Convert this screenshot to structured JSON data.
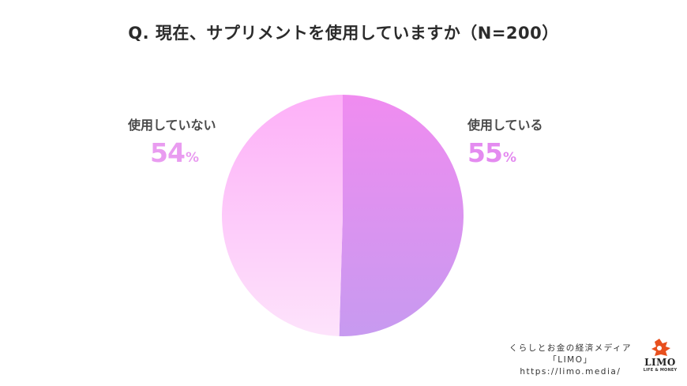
{
  "chart_data": {
    "type": "pie",
    "title": "Q. 現在、サプリメントを使用していますか（N=200）",
    "slices": [
      {
        "name": "使用している",
        "value": 55,
        "display": "55",
        "unit": "%",
        "colors": [
          "#f08cf0",
          "#c79af0"
        ]
      },
      {
        "name": "使用していない",
        "value": 54,
        "display": "54",
        "unit": "%",
        "colors": [
          "#fdb0f8",
          "#fde3fb"
        ]
      }
    ]
  },
  "credit": {
    "line1": "くらしとお金の経済メディア",
    "line2": "「LIMO」",
    "line3": "https://limo.media/"
  },
  "logo": {
    "name": "LIMO",
    "tagline": "LIFE & MONEY",
    "color": "#e8501e"
  }
}
